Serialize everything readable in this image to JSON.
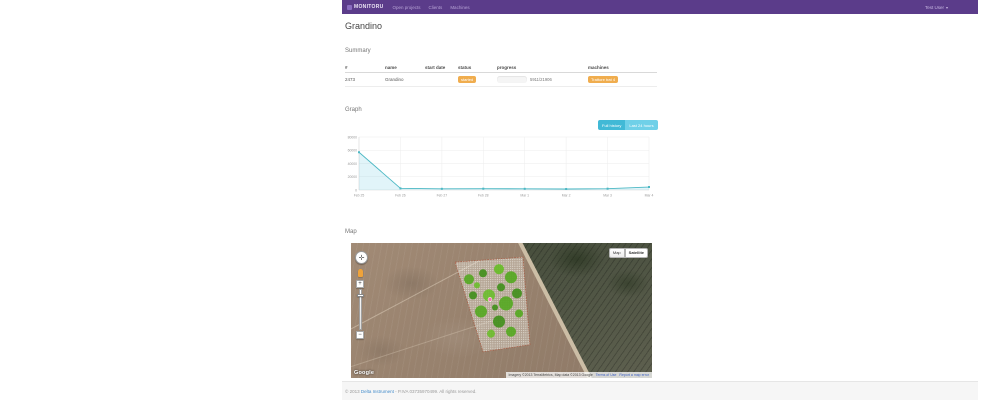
{
  "navbar": {
    "brand": "MONITORU",
    "links": [
      {
        "label": "Open projects"
      },
      {
        "label": "Clients"
      },
      {
        "label": "Machines"
      }
    ],
    "user": "Test User",
    "user_caret": "▾"
  },
  "page": {
    "title": "Grandino"
  },
  "summary": {
    "heading": "Summary",
    "table": {
      "columns": [
        "#",
        "name",
        "start date",
        "status",
        "progress",
        "machines"
      ],
      "rows": [
        {
          "id": "2473",
          "name": "Grandino",
          "start_date": "",
          "status": "started",
          "progress_percent": 27,
          "progress_text": "5911/21906",
          "machines": [
            "Trattore trat 4"
          ]
        }
      ]
    }
  },
  "graph": {
    "heading": "Graph",
    "buttons": [
      {
        "label": "Full history"
      },
      {
        "label": "Last 24 hours"
      }
    ]
  },
  "chart_data": {
    "type": "area",
    "title": "",
    "xlabel": "",
    "ylabel": "",
    "x": [
      "Feb 25",
      "Feb 26",
      "Feb 27",
      "Feb 28",
      "Mar 1",
      "Mar 2",
      "Mar 3",
      "Mar 4"
    ],
    "series": [
      {
        "name": "progress",
        "values": [
          57000,
          2500,
          1800,
          2000,
          1800,
          1500,
          2000,
          4500
        ]
      }
    ],
    "ylim": [
      0,
      80000
    ],
    "yticks": [
      0,
      20000,
      40000,
      60000,
      80000
    ],
    "grid": true,
    "legend": "none",
    "line_color": "#4cb8c4",
    "fill_color": "rgba(91,192,222,0.18)"
  },
  "map": {
    "heading": "Map",
    "type_buttons": [
      {
        "label": "Map",
        "active": false
      },
      {
        "label": "Satellite",
        "active": true
      }
    ],
    "zoom_plus": "+",
    "zoom_minus": "−",
    "pan_glyph": "✛",
    "logo": "Google",
    "attribution": "Imagery ©2013 TerraMetrics, Map data ©2013 Google",
    "terms_link": "Terms of Use",
    "report_link": "Report a map error"
  },
  "footer": {
    "prefix": "© 2013",
    "link": "Delta Instrument",
    "suffix": "- P.IVA 03735970499. All rights reserved."
  },
  "colors": {
    "navbar": "#5b3c8a",
    "badge_orange": "#f0ad4e",
    "btn_teal_dark": "#41b9d6",
    "btn_teal_light": "#6fd0e8",
    "chart_line": "#4cb8c4",
    "footer_link": "#428bca"
  }
}
